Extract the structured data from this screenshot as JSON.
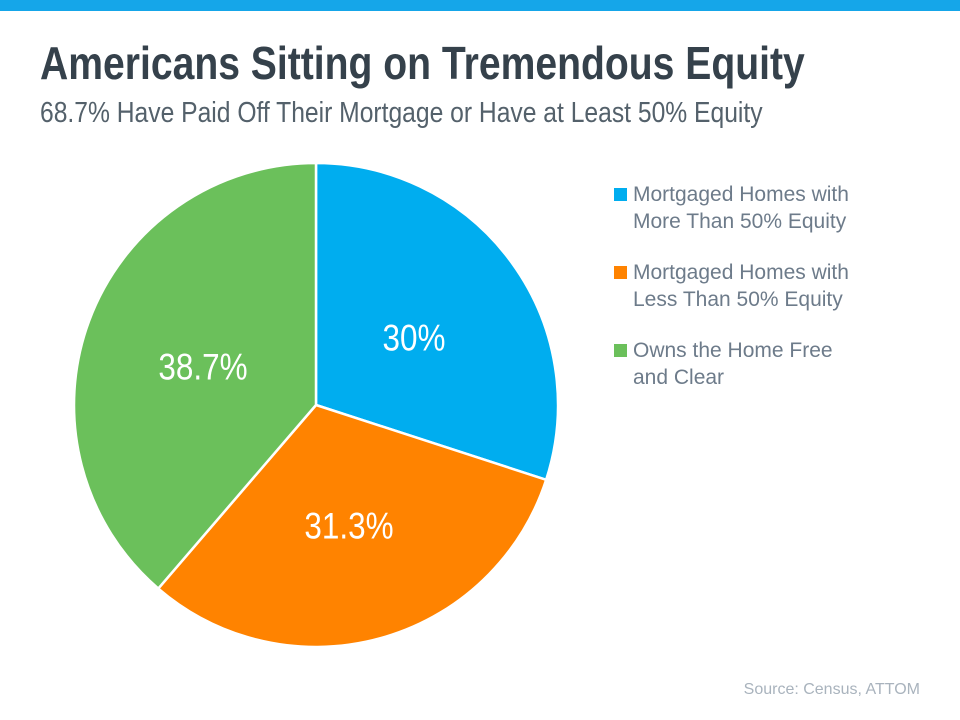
{
  "header": {
    "title": "Americans Sitting on Tremendous Equity",
    "subtitle": "68.7% Have Paid Off Their Mortgage or Have at Least 50% Equity"
  },
  "footer": {
    "source": "Source: Census, ATTOM"
  },
  "theme": {
    "accent_bar_color": "#15A6E9",
    "title_color": "#35414B",
    "subtitle_color": "#54616B",
    "legend_text_color": "#6D7B8A",
    "source_color": "#A9B3BD",
    "slice_label_color": "#FFFFFF",
    "slice_divider_color": "#FFFFFF"
  },
  "chart_data": {
    "type": "pie",
    "title": "Americans Sitting on Tremendous Equity",
    "subtitle": "68.7% Have Paid Off Their Mortgage or Have at Least 50% Equity",
    "source": "Source: Census, ATTOM",
    "start_angle_deg": 0,
    "direction": "clockwise",
    "legend_position": "right",
    "slices": [
      {
        "label": "Mortgaged Homes with More Than 50% Equity",
        "value": 30,
        "display": "30%",
        "color": "#00ADEF"
      },
      {
        "label": "Mortgaged Homes with Less Than 50% Equity",
        "value": 31.3,
        "display": "31.3%",
        "color": "#FF8300"
      },
      {
        "label": "Owns the Home Free and Clear",
        "value": 38.7,
        "display": "38.7%",
        "color": "#6BC05B"
      }
    ]
  }
}
